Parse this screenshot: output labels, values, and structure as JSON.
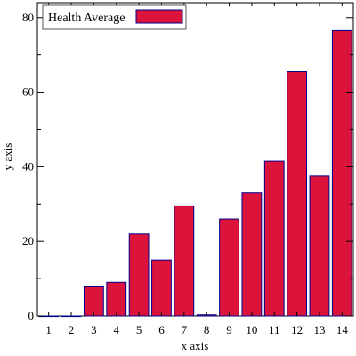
{
  "chart_data": {
    "type": "bar",
    "xlabel": "x axis",
    "ylabel": "y axis",
    "ylim": [
      0,
      84
    ],
    "y_ticks": [
      0,
      20,
      40,
      60,
      80
    ],
    "grid": false,
    "legend_position": "top-left",
    "categories": [
      "1",
      "2",
      "3",
      "4",
      "5",
      "6",
      "7",
      "8",
      "9",
      "10",
      "11",
      "12",
      "13",
      "14"
    ],
    "series": [
      {
        "name": "Health Average",
        "color": "#dc143c",
        "edge_color": "#00008b",
        "values": [
          0,
          0,
          8,
          9,
          22,
          15,
          29.5,
          0.3,
          26,
          33,
          41.5,
          65.5,
          37.5,
          76.5
        ]
      }
    ]
  }
}
